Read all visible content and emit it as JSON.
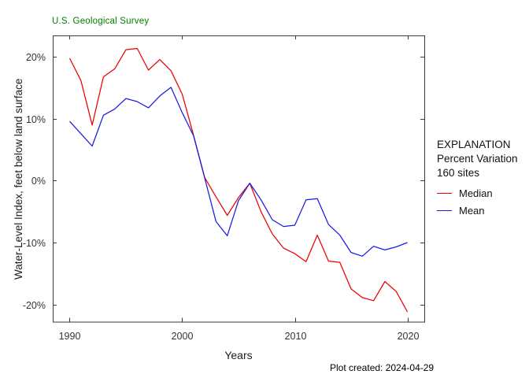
{
  "header": {
    "agency": "U.S. Geological Survey",
    "agency_color": "#008000"
  },
  "chart_data": {
    "type": "line",
    "title": "",
    "xlabel": "Years",
    "ylabel": "Water-Level Index, feet below land surface",
    "grid": false,
    "box": true,
    "tick_style": "inward-mirrored",
    "xlim": [
      1988.5,
      2021.5
    ],
    "ylim": [
      -22.8,
      23.5
    ],
    "x_ticks": [
      1990,
      2000,
      2010,
      2020
    ],
    "x_tick_labels": [
      "1990",
      "2000",
      "2010",
      "2020"
    ],
    "y_ticks": [
      20,
      10,
      0,
      -10,
      -20
    ],
    "y_tick_labels": [
      "20%",
      "10%",
      "0%",
      "-10%",
      "-20%"
    ],
    "x": [
      1990,
      1991,
      1992,
      1993,
      1994,
      1995,
      1996,
      1997,
      1998,
      1999,
      2000,
      2001,
      2002,
      2003,
      2004,
      2005,
      2006,
      2007,
      2008,
      2009,
      2010,
      2011,
      2012,
      2013,
      2014,
      2015,
      2016,
      2017,
      2018,
      2019,
      2020
    ],
    "series": [
      {
        "name": "Median",
        "color": "#ee0000",
        "values": [
          19.8,
          16.2,
          9.0,
          16.8,
          18.1,
          21.2,
          21.4,
          17.9,
          19.6,
          17.8,
          14.0,
          7.4,
          0.5,
          -2.6,
          -5.6,
          -2.7,
          -0.4,
          -5.0,
          -8.6,
          -10.9,
          -11.8,
          -13.1,
          -8.8,
          -13.0,
          -13.2,
          -17.5,
          -18.9,
          -19.4,
          -16.3,
          -17.9,
          -21.2
        ]
      },
      {
        "name": "Mean",
        "color": "#1a1ae0",
        "values": [
          9.6,
          7.6,
          5.6,
          10.6,
          11.6,
          13.3,
          12.8,
          11.8,
          13.7,
          15.1,
          11.0,
          7.3,
          0.4,
          -6.6,
          -8.9,
          -3.2,
          -0.4,
          -3.1,
          -6.3,
          -7.4,
          -7.2,
          -3.1,
          -2.9,
          -7.1,
          -8.8,
          -11.6,
          -12.2,
          -10.6,
          -11.2,
          -10.7,
          -10.0
        ]
      }
    ],
    "axis_color": "#3a3a3a",
    "tick_label_color": "#333333"
  },
  "legend": {
    "title": "EXPLANATION",
    "subtitle": "Percent Variation",
    "sites": "160 sites",
    "entries": [
      {
        "label": "Median",
        "color": "#ee0000"
      },
      {
        "label": "Mean",
        "color": "#1a1ae0"
      }
    ]
  },
  "footer": {
    "created": "Plot created: 2024-04-29"
  }
}
